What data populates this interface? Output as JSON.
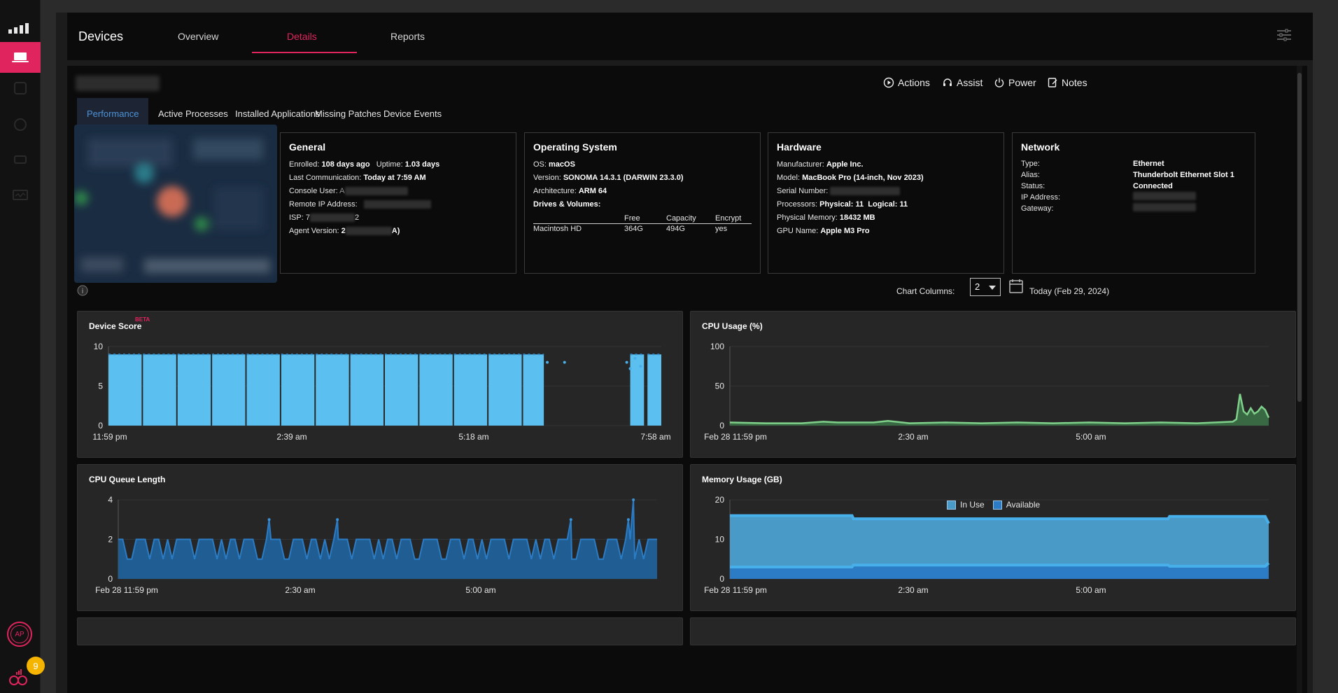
{
  "rail": {
    "badge_count": "9",
    "avatar_initials": "AP"
  },
  "topbar": {
    "title": "Devices",
    "tabs": [
      {
        "label": "Overview"
      },
      {
        "label": "Details"
      },
      {
        "label": "Reports"
      }
    ]
  },
  "actions": {
    "actions": "Actions",
    "assist": "Assist",
    "power": "Power",
    "notes": "Notes"
  },
  "subtabs": [
    {
      "label": "Performance"
    },
    {
      "label": "Active Processes"
    },
    {
      "label": "Installed Applications"
    },
    {
      "label": "Missing Patches"
    },
    {
      "label": "Device Events"
    }
  ],
  "general": {
    "title": "General",
    "enrolled_label": "Enrolled:",
    "enrolled": "108 days ago",
    "uptime_label": "Uptime:",
    "uptime": "1.03 days",
    "last_comm_label": "Last Communication:",
    "last_comm": "Today at 7:59 AM",
    "console_user_label": "Console User:",
    "console_user_partial": "A",
    "remote_ip_label": "Remote IP Address:",
    "isp_label": "ISP:",
    "isp_partial_a": "7",
    "isp_partial_b": "2",
    "agent_version_label": "Agent Version:",
    "agent_partial_a": "2",
    "agent_partial_b": "A)"
  },
  "os": {
    "title": "Operating System",
    "os_label": "OS:",
    "os": "macOS",
    "version_label": "Version:",
    "version": "SONOMA 14.3.1 (DARWIN 23.3.0)",
    "arch_label": "Architecture:",
    "arch": "ARM 64",
    "drives_label": "Drives & Volumes:",
    "drives_headers": [
      "",
      "Free",
      "Capacity",
      "Encrypt"
    ],
    "drives": [
      {
        "name": "Macintosh HD",
        "free": "364G",
        "capacity": "494G",
        "encrypt": "yes"
      }
    ]
  },
  "hardware": {
    "title": "Hardware",
    "manufacturer_label": "Manufacturer:",
    "manufacturer": "Apple Inc.",
    "model_label": "Model:",
    "model": "MacBook Pro (14-inch, Nov 2023)",
    "serial_label": "Serial Number:",
    "processors_label": "Processors:",
    "physical_label": "Physical: 11",
    "logical_label": "Logical: 11",
    "memory_label": "Physical Memory:",
    "memory": "18432 MB",
    "gpu_label": "GPU Name:",
    "gpu": "Apple M3 Pro"
  },
  "network": {
    "title": "Network",
    "type_label": "Type:",
    "type": "Ethernet",
    "alias_label": "Alias:",
    "alias": "Thunderbolt Ethernet Slot 1",
    "status_label": "Status:",
    "status": "Connected",
    "ip_label": "IP Address:",
    "gateway_label": "Gateway:"
  },
  "controls": {
    "chart_columns_label": "Chart Columns:",
    "chart_columns_value": "2",
    "date_label": "Today (Feb 29, 2024)"
  },
  "colors": {
    "accent": "#e0245e",
    "score_blue": "#5bc0f0",
    "cpu_green": "#7fd08a",
    "queue_blue": "#2b7cc4",
    "memory_fill": "#4a9ac8",
    "memory_line": "#47b0ea"
  },
  "chart_data": [
    {
      "type": "bar",
      "title": "Device Score",
      "badge": "BETA",
      "ylim": [
        0,
        10
      ],
      "yticks": [
        "10",
        "5",
        "0"
      ],
      "xticks": [
        "11:59 pm",
        "2:39 am",
        "5:18 am",
        "7:58 am"
      ],
      "x_range_hours": [
        0,
        8
      ],
      "segments": [
        {
          "start": 0.0,
          "end": 0.48,
          "value": 9.0
        },
        {
          "start": 0.5,
          "end": 0.98,
          "value": 9.0
        },
        {
          "start": 1.0,
          "end": 1.48,
          "value": 9.0
        },
        {
          "start": 1.5,
          "end": 1.98,
          "value": 9.0
        },
        {
          "start": 2.0,
          "end": 2.48,
          "value": 9.0
        },
        {
          "start": 2.5,
          "end": 2.98,
          "value": 9.0
        },
        {
          "start": 3.0,
          "end": 3.48,
          "value": 9.0
        },
        {
          "start": 3.5,
          "end": 3.98,
          "value": 9.0
        },
        {
          "start": 4.0,
          "end": 4.48,
          "value": 9.0
        },
        {
          "start": 4.5,
          "end": 4.98,
          "value": 9.0
        },
        {
          "start": 5.0,
          "end": 5.48,
          "value": 9.0
        },
        {
          "start": 5.5,
          "end": 5.98,
          "value": 9.0
        },
        {
          "start": 6.0,
          "end": 6.3,
          "value": 9.0
        },
        {
          "start": 7.55,
          "end": 7.75,
          "value": 9.0
        },
        {
          "start": 7.8,
          "end": 8.0,
          "value": 9.0
        }
      ],
      "scatter": [
        {
          "x": 6.35,
          "y": 8.0
        },
        {
          "x": 6.6,
          "y": 8.0
        },
        {
          "x": 7.5,
          "y": 8.0
        },
        {
          "x": 7.55,
          "y": 7.2
        },
        {
          "x": 7.62,
          "y": 8.5
        },
        {
          "x": 7.7,
          "y": 7.5
        }
      ]
    },
    {
      "type": "area",
      "title": "CPU Usage (%)",
      "ylim": [
        0,
        100
      ],
      "yticks": [
        "100",
        "50",
        "0"
      ],
      "xticks": [
        "Feb 28 11:59 pm",
        "2:30 am",
        "5:00 am"
      ],
      "x_range_hours": [
        0,
        7.5
      ],
      "series": [
        {
          "x": [
            0,
            0.5,
            1.0,
            1.3,
            1.5,
            2.0,
            2.2,
            2.5,
            3.0,
            3.5,
            4.0,
            4.5,
            5.0,
            5.5,
            6.0,
            6.5,
            7.0,
            7.05,
            7.1,
            7.15,
            7.2,
            7.25,
            7.3,
            7.35,
            7.4,
            7.45,
            7.5
          ],
          "y": [
            4,
            3,
            3,
            5,
            4,
            4,
            6,
            3,
            4,
            3,
            4,
            3,
            4,
            3,
            4,
            3,
            5,
            8,
            40,
            18,
            14,
            22,
            15,
            18,
            24,
            20,
            10
          ]
        }
      ]
    },
    {
      "type": "area",
      "title": "CPU Queue Length",
      "ylim": [
        0,
        4
      ],
      "yticks": [
        "4",
        "2",
        "0"
      ],
      "xticks": [
        "Feb 28 11:59 pm",
        "2:30 am",
        "5:00 am"
      ],
      "x_range_hours": [
        0,
        7.5
      ],
      "baseline": 2,
      "dips_to": 1,
      "spikes": [
        {
          "x": 2.1,
          "y": 3
        },
        {
          "x": 3.05,
          "y": 3
        },
        {
          "x": 6.3,
          "y": 3
        },
        {
          "x": 7.1,
          "y": 3
        },
        {
          "x": 7.17,
          "y": 4
        }
      ]
    },
    {
      "type": "area",
      "title": "Memory Usage (GB)",
      "ylim": [
        0,
        20
      ],
      "yticks": [
        "20",
        "10",
        "0"
      ],
      "xticks": [
        "Feb 28 11:59 pm",
        "2:30 am",
        "5:00 am"
      ],
      "x_range_hours": [
        0,
        7.5
      ],
      "series": [
        {
          "name": "In Use",
          "x": [
            0,
            1.7,
            1.72,
            6.1,
            6.12,
            7.45,
            7.5
          ],
          "y": [
            3,
            3,
            3.5,
            3.5,
            3.2,
            3.2,
            4
          ]
        },
        {
          "name": "Available",
          "x": [
            0,
            1.7,
            1.72,
            6.1,
            6.12,
            7.45,
            7.5
          ],
          "y": [
            16,
            16,
            15.2,
            15.2,
            15.8,
            15.8,
            14
          ]
        }
      ]
    }
  ]
}
